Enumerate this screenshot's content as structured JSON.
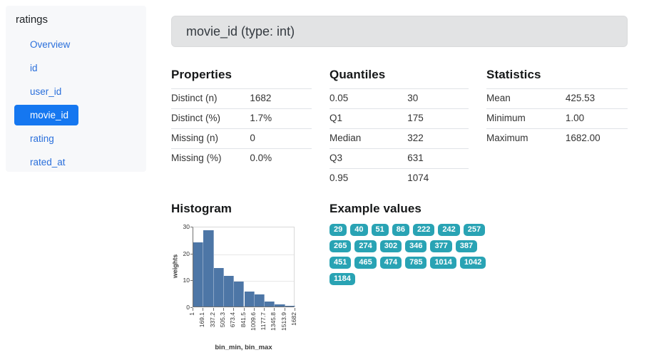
{
  "sidebar": {
    "title": "ratings",
    "items": [
      {
        "label": "Overview",
        "active": false
      },
      {
        "label": "id",
        "active": false
      },
      {
        "label": "user_id",
        "active": false
      },
      {
        "label": "movie_id",
        "active": true
      },
      {
        "label": "rating",
        "active": false
      },
      {
        "label": "rated_at",
        "active": false
      }
    ]
  },
  "header": {
    "title": "movie_id (type: int)"
  },
  "sections": {
    "properties": {
      "heading": "Properties",
      "rows": [
        {
          "label": "Distinct (n)",
          "value": "1682"
        },
        {
          "label": "Distinct (%)",
          "value": "1.7%"
        },
        {
          "label": "Missing (n)",
          "value": "0"
        },
        {
          "label": "Missing (%)",
          "value": "0.0%"
        }
      ]
    },
    "quantiles": {
      "heading": "Quantiles",
      "rows": [
        {
          "label": "0.05",
          "value": "30"
        },
        {
          "label": "Q1",
          "value": "175"
        },
        {
          "label": "Median",
          "value": "322"
        },
        {
          "label": "Q3",
          "value": "631"
        },
        {
          "label": "0.95",
          "value": "1074"
        }
      ]
    },
    "statistics": {
      "heading": "Statistics",
      "rows": [
        {
          "label": "Mean",
          "value": "425.53"
        },
        {
          "label": "Minimum",
          "value": "1.00"
        },
        {
          "label": "Maximum",
          "value": "1682.00"
        }
      ]
    },
    "histogram": {
      "heading": "Histogram"
    },
    "examples": {
      "heading": "Example values",
      "values": [
        "29",
        "40",
        "51",
        "86",
        "222",
        "242",
        "257",
        "265",
        "274",
        "302",
        "346",
        "377",
        "387",
        "451",
        "465",
        "474",
        "785",
        "1014",
        "1042",
        "1184"
      ]
    }
  },
  "chart_data": {
    "type": "bar",
    "title": "Histogram",
    "xlabel": "bin_min, bin_max",
    "ylabel": "weights",
    "bin_edges": [
      1,
      169.1,
      337.2,
      505.3,
      673.4,
      841.5,
      1009.6,
      1177.7,
      1345.8,
      1513.9,
      1682
    ],
    "values": [
      23.8,
      28.5,
      14.3,
      11.5,
      9.2,
      5.6,
      4.4,
      1.9,
      0.9,
      0.4
    ],
    "ylim": [
      0,
      30
    ],
    "yticks": [
      0,
      10,
      20,
      30
    ],
    "grid": true,
    "legend": false,
    "bar_color": "#4d76a6"
  },
  "colors": {
    "link_blue": "#2a6fdb",
    "active_item_blue": "#1577f0",
    "badge_teal": "#29a3b4",
    "bar_blue": "#4d76a6",
    "header_bg": "#e2e3e4"
  }
}
